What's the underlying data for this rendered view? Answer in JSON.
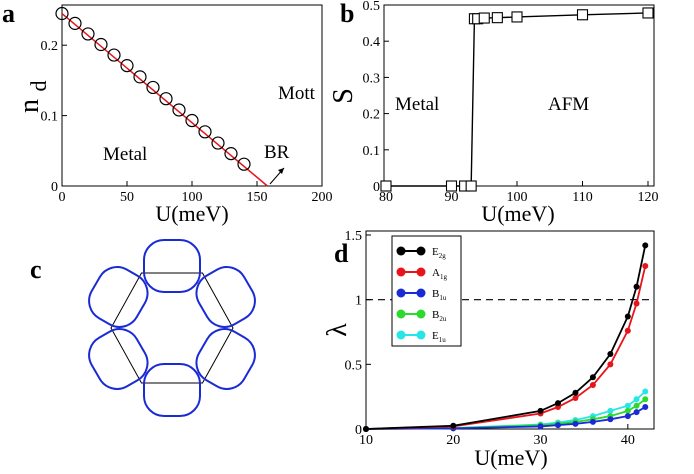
{
  "chart_data": [
    {
      "panel": "a",
      "type": "line",
      "xlabel": "U(meV)",
      "ylabel": "n",
      "ylabel_sub": "d",
      "xlim": [
        0,
        200
      ],
      "ylim": [
        0,
        0.25
      ],
      "xticks": [
        "0",
        "50",
        "100",
        "150",
        "200"
      ],
      "yticks": [
        "0",
        "0.1",
        "0.2"
      ],
      "annotations": {
        "metal": "Metal",
        "mott": "Mott",
        "br": "BR"
      },
      "series": [
        {
          "style": "open-circles",
          "x": [
            0,
            10,
            20,
            30,
            40,
            50,
            60,
            70,
            80,
            90,
            100,
            110,
            120,
            130,
            140
          ],
          "y": [
            0.245,
            0.231,
            0.216,
            0.201,
            0.186,
            0.171,
            0.155,
            0.14,
            0.124,
            0.108,
            0.093,
            0.077,
            0.061,
            0.046,
            0.031
          ]
        },
        {
          "style": "red-line",
          "x": [
            0,
            158
          ],
          "y": [
            0.245,
            0.0
          ]
        }
      ]
    },
    {
      "panel": "b",
      "type": "line",
      "xlabel": "U(meV)",
      "ylabel": "S",
      "xlim": [
        80,
        120
      ],
      "ylim": [
        0,
        0.5
      ],
      "xticks": [
        "80",
        "90",
        "100",
        "110",
        "120"
      ],
      "yticks": [
        "0",
        "0.1",
        "0.2",
        "0.3",
        "0.4",
        "0.5"
      ],
      "annotations": {
        "metal": "Metal",
        "afm": "AFM"
      },
      "series": [
        {
          "style": "open-squares",
          "x": [
            80,
            90,
            92,
            93,
            93.5,
            94,
            95,
            97,
            100,
            110,
            120
          ],
          "y": [
            0,
            0,
            0,
            0,
            0.462,
            0.462,
            0.464,
            0.465,
            0.467,
            0.473,
            0.478
          ]
        }
      ]
    },
    {
      "panel": "c",
      "type": "diagram",
      "description_colors": {
        "hexagon": "#000000",
        "contour": "#1a2bd6"
      }
    },
    {
      "panel": "d",
      "type": "line",
      "xlabel": "U(meV)",
      "ylabel": "λ",
      "xlim": [
        10,
        43
      ],
      "ylim": [
        0,
        1.5
      ],
      "xticks": [
        "10",
        "20",
        "30",
        "40"
      ],
      "yticks": [
        "0",
        "0.5",
        "1",
        "1.5"
      ],
      "hline": 1,
      "legend_position": "top-left",
      "series": [
        {
          "name": "E",
          "sub": "2g",
          "color": "#000000",
          "x": [
            10,
            20,
            30,
            32,
            34,
            36,
            38,
            40,
            41,
            42
          ],
          "y": [
            0.0,
            0.025,
            0.14,
            0.2,
            0.28,
            0.4,
            0.58,
            0.87,
            1.1,
            1.42
          ]
        },
        {
          "name": "A",
          "sub": "1g",
          "color": "#e8141b",
          "x": [
            10,
            20,
            30,
            32,
            34,
            36,
            38,
            40,
            41,
            42
          ],
          "y": [
            0.0,
            0.02,
            0.12,
            0.17,
            0.24,
            0.34,
            0.5,
            0.76,
            0.97,
            1.26
          ]
        },
        {
          "name": "B",
          "sub": "1u",
          "color": "#1a2bd6",
          "x": [
            10,
            20,
            30,
            32,
            34,
            36,
            38,
            40,
            41,
            42
          ],
          "y": [
            0.0,
            0.005,
            0.02,
            0.03,
            0.04,
            0.055,
            0.075,
            0.1,
            0.13,
            0.17
          ]
        },
        {
          "name": "B",
          "sub": "2u",
          "color": "#2ed92e",
          "x": [
            10,
            20,
            30,
            32,
            34,
            36,
            38,
            40,
            41,
            42
          ],
          "y": [
            0.0,
            0.006,
            0.03,
            0.04,
            0.055,
            0.075,
            0.1,
            0.14,
            0.18,
            0.23
          ]
        },
        {
          "name": "E",
          "sub": "1u",
          "color": "#29e6e6",
          "x": [
            10,
            20,
            30,
            32,
            34,
            36,
            38,
            40,
            41,
            42
          ],
          "y": [
            0.0,
            0.008,
            0.035,
            0.05,
            0.07,
            0.1,
            0.14,
            0.18,
            0.23,
            0.29
          ]
        }
      ]
    }
  ],
  "labels": {
    "a": "a",
    "b": "b",
    "c": "c",
    "d": "d"
  }
}
